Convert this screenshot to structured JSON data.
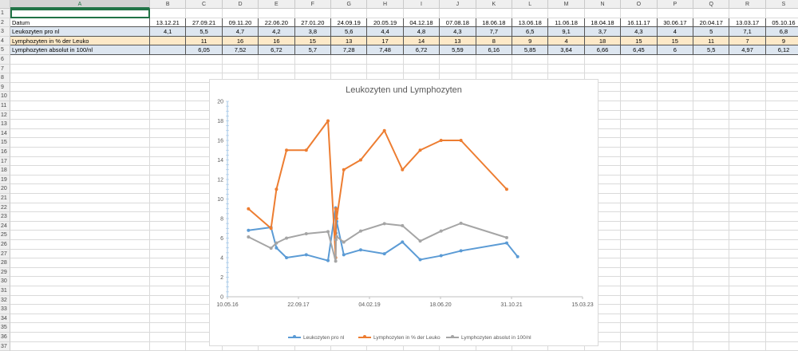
{
  "spreadsheet": {
    "name_box_selection": "A1",
    "columns": [
      "A",
      "B",
      "C",
      "D",
      "E",
      "F",
      "G",
      "H",
      "I",
      "J",
      "K",
      "L",
      "M",
      "N",
      "O",
      "P",
      "Q",
      "R",
      "S"
    ],
    "row_numbers": [
      "1",
      "2",
      "3",
      "4",
      "5",
      "6",
      "7",
      "8",
      "9",
      "10",
      "11",
      "12",
      "13",
      "14",
      "15",
      "16",
      "17",
      "18",
      "19",
      "20",
      "21",
      "22",
      "23",
      "24",
      "25",
      "26",
      "27",
      "28",
      "29",
      "30",
      "31",
      "32",
      "33",
      "34",
      "35",
      "36",
      "37"
    ],
    "rows": [
      {
        "label": "",
        "values": [
          "",
          "",
          "",
          "",
          "",
          "",
          "",
          "",
          "",
          "",
          "",
          "",
          "",
          "",
          "",
          "",
          "",
          ""
        ]
      },
      {
        "label": "Datum",
        "values": [
          "13.12.21",
          "27.09.21",
          "09.11.20",
          "22.06.20",
          "27.01.20",
          "24.09.19",
          "20.05.19",
          "04.12.18",
          "07.08.18",
          "18.06.18",
          "13.06.18",
          "11.06.18",
          "18.04.18",
          "16.11.17",
          "30.06.17",
          "20.04.17",
          "13.03.17",
          "05.10.16"
        ]
      },
      {
        "label": "Leukozyten pro nl",
        "values": [
          "4,1",
          "5,5",
          "4,7",
          "4,2",
          "3,8",
          "5,6",
          "4,4",
          "4,8",
          "4,3",
          "7,7",
          "6,5",
          "9,1",
          "3,7",
          "4,3",
          "4",
          "5",
          "7,1",
          "6,8"
        ]
      },
      {
        "label": "Lymphozyten in % der Leuko",
        "values": [
          "",
          "11",
          "16",
          "16",
          "15",
          "13",
          "17",
          "14",
          "13",
          "8",
          "9",
          "4",
          "18",
          "15",
          "15",
          "11",
          "7",
          "9"
        ]
      },
      {
        "label": "Lymphozyten absolut in 100/nl",
        "values": [
          "",
          "6,05",
          "7,52",
          "6,72",
          "5,7",
          "7,28",
          "7,48",
          "6,72",
          "5,59",
          "6,16",
          "5,85",
          "3,64",
          "6,66",
          "6,45",
          "6",
          "5,5",
          "4,97",
          "6,12"
        ]
      }
    ]
  },
  "chart_data": {
    "type": "line",
    "title": "Leukozyten und Lymphozyten",
    "x_axis_ticks": [
      "10.05.16",
      "22.09.17",
      "04.02.19",
      "18.06.20",
      "31.10.21",
      "15.03.23"
    ],
    "x_range": [
      "2016-05-10",
      "2023-03-15"
    ],
    "ylim": [
      0,
      20
    ],
    "y_ticks": [
      0,
      2,
      4,
      6,
      8,
      10,
      12,
      14,
      16,
      18,
      20
    ],
    "grid": false,
    "legend_position": "bottom",
    "x": [
      "2016-10-05",
      "2017-03-13",
      "2017-04-20",
      "2017-06-30",
      "2017-11-16",
      "2018-04-18",
      "2018-06-11",
      "2018-06-13",
      "2018-06-18",
      "2018-08-07",
      "2018-12-04",
      "2019-05-20",
      "2019-09-24",
      "2020-01-27",
      "2020-06-22",
      "2020-11-09",
      "2021-09-27",
      "2021-12-13"
    ],
    "series": [
      {
        "name": "Leukozyten pro nl",
        "color": "#5b9bd5",
        "values": [
          6.8,
          7.1,
          5,
          4,
          4.3,
          3.7,
          9.1,
          6.5,
          7.7,
          4.3,
          4.8,
          4.4,
          5.6,
          3.8,
          4.2,
          4.7,
          5.5,
          4.1
        ]
      },
      {
        "name": "Lymphozyten in % der Leuko",
        "color": "#ed7d31",
        "values": [
          9,
          7,
          11,
          15,
          15,
          18,
          4,
          9,
          8,
          13,
          14,
          17,
          13,
          15,
          16,
          16,
          11,
          null
        ]
      },
      {
        "name": "Lymphozyten absolut in 100/nl",
        "color": "#a5a5a5",
        "values": [
          6.12,
          4.97,
          5.5,
          6,
          6.45,
          6.66,
          3.64,
          5.85,
          6.16,
          5.59,
          6.72,
          7.48,
          7.28,
          5.7,
          6.72,
          7.52,
          6.05,
          null
        ]
      }
    ]
  }
}
